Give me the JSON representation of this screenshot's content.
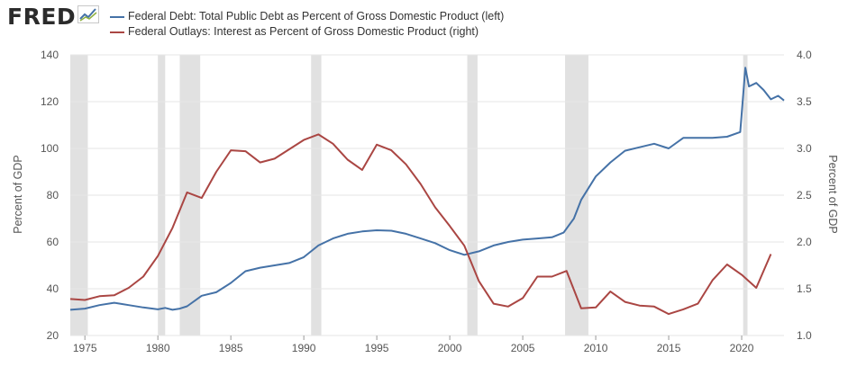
{
  "brand": {
    "name": "FRED",
    "icon": "sparkline-icon"
  },
  "colors": {
    "debt": "#4572a7",
    "outlays": "#aa4643",
    "recession": "#e1e1e1",
    "grid": "#e6e6e6"
  },
  "chart_data": {
    "type": "line",
    "legend_placement": "top-left",
    "grid": true,
    "xlim": [
      1974.0,
      2022.9
    ],
    "x_ticks": [
      "1975",
      "1980",
      "1985",
      "1990",
      "1995",
      "2000",
      "2005",
      "2010",
      "2015",
      "2020"
    ],
    "ylabel": "Percent of GDP",
    "ylim": [
      20,
      140
    ],
    "y_ticks": [
      "20",
      "40",
      "60",
      "80",
      "100",
      "120",
      "140"
    ],
    "ylabel_right": "Percent of GDP",
    "ylim_right": [
      1.0,
      4.0
    ],
    "y_ticks_right": [
      "1.0",
      "1.5",
      "2.0",
      "2.5",
      "3.0",
      "3.5",
      "4.0"
    ],
    "recessions": [
      [
        1973.9,
        1975.2
      ],
      [
        1980.0,
        1980.5
      ],
      [
        1981.5,
        1982.9
      ],
      [
        1990.5,
        1991.2
      ],
      [
        2001.2,
        2001.9
      ],
      [
        2007.9,
        2009.5
      ],
      [
        2020.1,
        2020.4
      ]
    ],
    "series": [
      {
        "name": "Federal Debt: Total Public Debt as Percent of Gross Domestic Product (left)",
        "axis": "left",
        "x": [
          1974.0,
          1975.0,
          1976.0,
          1977.0,
          1977.5,
          1978.0,
          1979.0,
          1980.0,
          1980.5,
          1981.0,
          1981.5,
          1982.0,
          1983.0,
          1984.0,
          1985.0,
          1986.0,
          1987.0,
          1988.0,
          1989.0,
          1990.0,
          1991.0,
          1992.0,
          1993.0,
          1994.0,
          1995.0,
          1996.0,
          1997.0,
          1998.0,
          1999.0,
          2000.0,
          2001.0,
          2002.0,
          2003.0,
          2004.0,
          2005.0,
          2006.0,
          2007.0,
          2007.8,
          2008.5,
          2009.0,
          2009.5,
          2010.0,
          2011.0,
          2012.0,
          2013.0,
          2014.0,
          2015.0,
          2016.0,
          2017.0,
          2018.0,
          2019.0,
          2019.9,
          2020.25,
          2020.5,
          2021.0,
          2021.5,
          2022.0,
          2022.5,
          2022.9
        ],
        "values": [
          31.0,
          31.5,
          33.0,
          34.0,
          33.5,
          33.0,
          32.0,
          31.2,
          31.8,
          31.0,
          31.5,
          32.5,
          37.0,
          38.5,
          42.5,
          47.5,
          49.0,
          50.0,
          51.0,
          53.5,
          58.5,
          61.5,
          63.5,
          64.5,
          65.0,
          64.8,
          63.5,
          61.5,
          59.5,
          56.5,
          54.5,
          56.0,
          58.5,
          60.0,
          61.0,
          61.5,
          62.0,
          64.0,
          70.0,
          78.0,
          83.0,
          88.0,
          94.0,
          99.0,
          100.5,
          102.0,
          100.0,
          104.5,
          104.5,
          104.5,
          105.0,
          107.0,
          134.5,
          126.5,
          128.0,
          125.0,
          121.0,
          122.5,
          120.5
        ]
      },
      {
        "name": "Federal Outlays: Interest as Percent of Gross Domestic Product (right)",
        "axis": "right",
        "x": [
          1974.0,
          1975.0,
          1976.0,
          1977.0,
          1978.0,
          1979.0,
          1980.0,
          1981.0,
          1982.0,
          1983.0,
          1984.0,
          1985.0,
          1986.0,
          1987.0,
          1988.0,
          1989.0,
          1990.0,
          1991.0,
          1992.0,
          1993.0,
          1994.0,
          1995.0,
          1996.0,
          1997.0,
          1998.0,
          1999.0,
          2000.0,
          2001.0,
          2002.0,
          2003.0,
          2004.0,
          2005.0,
          2006.0,
          2007.0,
          2008.0,
          2009.0,
          2010.0,
          2011.0,
          2012.0,
          2013.0,
          2014.0,
          2015.0,
          2016.0,
          2017.0,
          2018.0,
          2019.0,
          2020.0,
          2021.0,
          2022.0
        ],
        "values": [
          1.39,
          1.38,
          1.42,
          1.43,
          1.51,
          1.63,
          1.85,
          2.15,
          2.53,
          2.47,
          2.75,
          2.98,
          2.97,
          2.85,
          2.89,
          2.99,
          3.09,
          3.15,
          3.05,
          2.88,
          2.77,
          3.04,
          2.98,
          2.83,
          2.62,
          2.37,
          2.17,
          1.96,
          1.58,
          1.34,
          1.31,
          1.4,
          1.63,
          1.63,
          1.69,
          1.29,
          1.3,
          1.47,
          1.36,
          1.32,
          1.31,
          1.23,
          1.28,
          1.34,
          1.59,
          1.76,
          1.65,
          1.51,
          1.87
        ]
      }
    ]
  }
}
